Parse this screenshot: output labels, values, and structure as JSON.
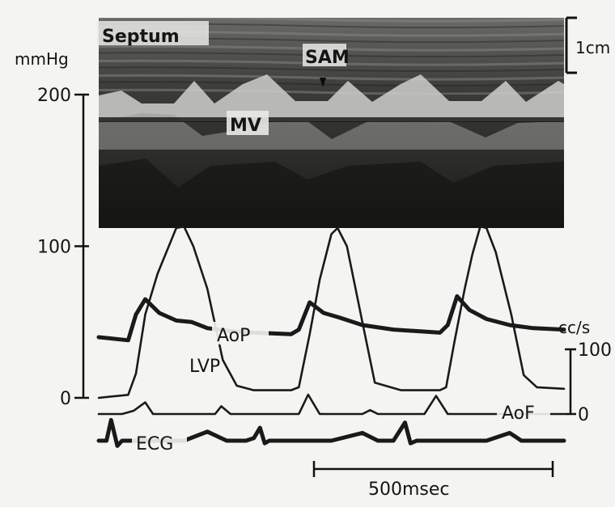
{
  "chart_data": {
    "type": "line",
    "title": "",
    "image_labels": {
      "septum": "Septum",
      "sam": "SAM",
      "mv": "MV",
      "cm_scale": "1cm"
    },
    "left_axis": {
      "unit": "mmHg",
      "ticks": [
        {
          "value": 200,
          "label": "200"
        },
        {
          "value": 100,
          "label": "100"
        },
        {
          "value": 0,
          "label": "0"
        }
      ],
      "ylim": [
        0,
        200
      ]
    },
    "right_axis": {
      "unit": "cc/s",
      "ticks": [
        {
          "value": 100,
          "label": "100"
        },
        {
          "value": 0,
          "label": "0"
        }
      ],
      "ylim": [
        0,
        100
      ]
    },
    "time_scale": {
      "label": "500msec",
      "duration_ms": 500
    },
    "series": [
      {
        "name": "LVP",
        "axis": "left",
        "unit": "mmHg",
        "points": [
          [
            0,
            0
          ],
          [
            38,
            2
          ],
          [
            48,
            16
          ],
          [
            60,
            55
          ],
          [
            76,
            82
          ],
          [
            100,
            112
          ],
          [
            110,
            113
          ],
          [
            122,
            100
          ],
          [
            140,
            72
          ],
          [
            160,
            25
          ],
          [
            178,
            8
          ],
          [
            200,
            5
          ],
          [
            248,
            5
          ],
          [
            258,
            7
          ],
          [
            272,
            42
          ],
          [
            285,
            78
          ],
          [
            300,
            108
          ],
          [
            308,
            112
          ],
          [
            320,
            100
          ],
          [
            340,
            50
          ],
          [
            356,
            10
          ],
          [
            390,
            5
          ],
          [
            440,
            5
          ],
          [
            448,
            7
          ],
          [
            458,
            35
          ],
          [
            472,
            72
          ],
          [
            482,
            95
          ],
          [
            492,
            113
          ],
          [
            500,
            112
          ],
          [
            512,
            96
          ],
          [
            532,
            55
          ],
          [
            548,
            15
          ],
          [
            565,
            7
          ],
          [
            600,
            6
          ]
        ]
      },
      {
        "name": "AoP",
        "axis": "left",
        "unit": "mmHg",
        "points": [
          [
            0,
            40
          ],
          [
            38,
            38
          ],
          [
            48,
            55
          ],
          [
            60,
            65
          ],
          [
            78,
            56
          ],
          [
            100,
            51
          ],
          [
            120,
            50
          ],
          [
            140,
            46
          ],
          [
            170,
            44
          ],
          [
            200,
            43
          ],
          [
            248,
            42
          ],
          [
            258,
            45
          ],
          [
            272,
            63
          ],
          [
            290,
            56
          ],
          [
            310,
            53
          ],
          [
            340,
            48
          ],
          [
            380,
            45
          ],
          [
            440,
            43
          ],
          [
            450,
            48
          ],
          [
            462,
            67
          ],
          [
            478,
            58
          ],
          [
            500,
            52
          ],
          [
            530,
            48
          ],
          [
            560,
            46
          ],
          [
            600,
            45
          ]
        ]
      },
      {
        "name": "AoF",
        "axis": "right",
        "unit": "cc/s",
        "points": [
          [
            0,
            0
          ],
          [
            30,
            0
          ],
          [
            45,
            5
          ],
          [
            60,
            18
          ],
          [
            70,
            0
          ],
          [
            100,
            0
          ],
          [
            140,
            0
          ],
          [
            150,
            0
          ],
          [
            158,
            12
          ],
          [
            170,
            0
          ],
          [
            200,
            0
          ],
          [
            210,
            0
          ],
          [
            250,
            0
          ],
          [
            258,
            0
          ],
          [
            270,
            30
          ],
          [
            285,
            0
          ],
          [
            320,
            0
          ],
          [
            340,
            0
          ],
          [
            350,
            6
          ],
          [
            360,
            0
          ],
          [
            400,
            0
          ],
          [
            420,
            0
          ],
          [
            435,
            28
          ],
          [
            450,
            0
          ],
          [
            480,
            0
          ],
          [
            500,
            0
          ],
          [
            600,
            0
          ]
        ]
      },
      {
        "name": "ECG",
        "axis": "none",
        "points": [
          [
            0,
            0
          ],
          [
            10,
            0
          ],
          [
            16,
            16
          ],
          [
            24,
            -4
          ],
          [
            30,
            0
          ],
          [
            60,
            0
          ],
          [
            90,
            0
          ],
          [
            110,
            0
          ],
          [
            140,
            7
          ],
          [
            165,
            0
          ],
          [
            190,
            0
          ],
          [
            200,
            2
          ],
          [
            208,
            10
          ],
          [
            214,
            -2
          ],
          [
            220,
            0
          ],
          [
            260,
            0
          ],
          [
            300,
            0
          ],
          [
            340,
            6
          ],
          [
            360,
            0
          ],
          [
            380,
            0
          ],
          [
            395,
            14
          ],
          [
            402,
            -2
          ],
          [
            410,
            0
          ],
          [
            450,
            0
          ],
          [
            500,
            0
          ],
          [
            530,
            6
          ],
          [
            545,
            0
          ],
          [
            560,
            0
          ],
          [
            600,
            0
          ]
        ]
      }
    ]
  }
}
